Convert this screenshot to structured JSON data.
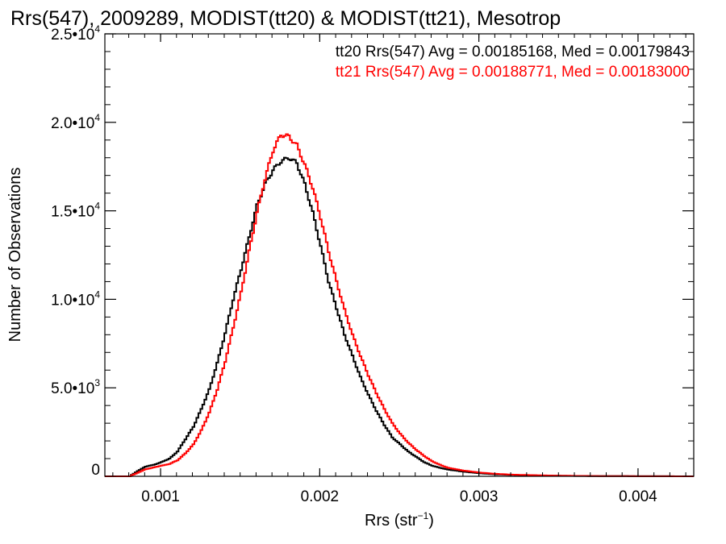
{
  "chart_data": {
    "type": "line",
    "title": "Rrs(547), 2009289, MODIST(tt20) & MODIST(tt21), Mesotrop",
    "xlabel": {
      "main": "Rrs (str",
      "sup": "−1",
      "close": ")"
    },
    "ylabel": "Number of Observations",
    "xlim": [
      0.00065,
      0.00435
    ],
    "ylim": [
      0,
      25000
    ],
    "grid": false,
    "legend_placement": "top-right",
    "x_ticks": [
      {
        "value": 0.001,
        "label": "0.001"
      },
      {
        "value": 0.002,
        "label": "0.002"
      },
      {
        "value": 0.003,
        "label": "0.003"
      },
      {
        "value": 0.004,
        "label": "0.004"
      }
    ],
    "y_ticks": [
      {
        "value": 0,
        "label": "0",
        "sup": ""
      },
      {
        "value": 5000,
        "label": "5.0•10",
        "sup": "3"
      },
      {
        "value": 10000,
        "label": "1.0•10",
        "sup": "4"
      },
      {
        "value": 15000,
        "label": "1.5•10",
        "sup": "4"
      },
      {
        "value": 20000,
        "label": "2.0•10",
        "sup": "4"
      },
      {
        "value": 25000,
        "label": "2.5•10",
        "sup": "4"
      }
    ],
    "series": [
      {
        "name": "tt20",
        "legend": "tt20 Rrs(547) Avg = 0.00185168, Med = 0.00179843",
        "color": "#000000",
        "points": [
          [
            0.00065,
            0
          ],
          [
            0.0008,
            0
          ],
          [
            0.00085,
            300
          ],
          [
            0.0009,
            550
          ],
          [
            0.00095,
            650
          ],
          [
            0.001,
            800
          ],
          [
            0.00105,
            1000
          ],
          [
            0.0011,
            1400
          ],
          [
            0.00115,
            2100
          ],
          [
            0.0012,
            2800
          ],
          [
            0.00125,
            3800
          ],
          [
            0.0013,
            4900
          ],
          [
            0.00135,
            6400
          ],
          [
            0.0014,
            8100
          ],
          [
            0.00145,
            10000
          ],
          [
            0.0015,
            11700
          ],
          [
            0.00155,
            13500
          ],
          [
            0.0016,
            15300
          ],
          [
            0.00165,
            16500
          ],
          [
            0.0017,
            17300
          ],
          [
            0.00175,
            17800
          ],
          [
            0.0018,
            18000
          ],
          [
            0.00185,
            17700
          ],
          [
            0.0019,
            16500
          ],
          [
            0.00195,
            14900
          ],
          [
            0.002,
            13000
          ],
          [
            0.00205,
            11000
          ],
          [
            0.0021,
            9500
          ],
          [
            0.00215,
            8000
          ],
          [
            0.0022,
            6800
          ],
          [
            0.00225,
            5600
          ],
          [
            0.0023,
            4600
          ],
          [
            0.00235,
            3700
          ],
          [
            0.0024,
            2900
          ],
          [
            0.00245,
            2200
          ],
          [
            0.0025,
            1800
          ],
          [
            0.00255,
            1400
          ],
          [
            0.0026,
            1100
          ],
          [
            0.00265,
            800
          ],
          [
            0.0027,
            600
          ],
          [
            0.00275,
            480
          ],
          [
            0.0028,
            380
          ],
          [
            0.0029,
            260
          ],
          [
            0.003,
            170
          ],
          [
            0.0031,
            110
          ],
          [
            0.0032,
            80
          ],
          [
            0.0034,
            40
          ],
          [
            0.0036,
            20
          ],
          [
            0.0038,
            10
          ],
          [
            0.004,
            5
          ],
          [
            0.00435,
            0
          ]
        ]
      },
      {
        "name": "tt21",
        "legend": "tt21 Rrs(547) Avg = 0.00188771, Med = 0.00183000",
        "color": "#ff0000",
        "points": [
          [
            0.00065,
            0
          ],
          [
            0.0008,
            0
          ],
          [
            0.00085,
            200
          ],
          [
            0.0009,
            400
          ],
          [
            0.00095,
            500
          ],
          [
            0.001,
            600
          ],
          [
            0.00105,
            700
          ],
          [
            0.0011,
            900
          ],
          [
            0.00115,
            1300
          ],
          [
            0.0012,
            1800
          ],
          [
            0.00125,
            2600
          ],
          [
            0.0013,
            3600
          ],
          [
            0.00135,
            4900
          ],
          [
            0.0014,
            6500
          ],
          [
            0.00145,
            8400
          ],
          [
            0.0015,
            10400
          ],
          [
            0.00155,
            12700
          ],
          [
            0.0016,
            14900
          ],
          [
            0.00165,
            16800
          ],
          [
            0.0017,
            18400
          ],
          [
            0.00175,
            19300
          ],
          [
            0.0018,
            19200
          ],
          [
            0.00185,
            18700
          ],
          [
            0.0019,
            17600
          ],
          [
            0.00195,
            16300
          ],
          [
            0.002,
            14600
          ],
          [
            0.00205,
            12700
          ],
          [
            0.0021,
            11000
          ],
          [
            0.00215,
            9400
          ],
          [
            0.0022,
            8000
          ],
          [
            0.00225,
            6800
          ],
          [
            0.0023,
            5700
          ],
          [
            0.00235,
            4700
          ],
          [
            0.0024,
            3800
          ],
          [
            0.00245,
            3000
          ],
          [
            0.0025,
            2400
          ],
          [
            0.00255,
            1900
          ],
          [
            0.0026,
            1500
          ],
          [
            0.00265,
            1150
          ],
          [
            0.0027,
            850
          ],
          [
            0.00275,
            650
          ],
          [
            0.0028,
            480
          ],
          [
            0.0029,
            320
          ],
          [
            0.003,
            210
          ],
          [
            0.0031,
            140
          ],
          [
            0.0032,
            95
          ],
          [
            0.0034,
            50
          ],
          [
            0.0036,
            25
          ],
          [
            0.0038,
            12
          ],
          [
            0.004,
            6
          ],
          [
            0.00435,
            0
          ]
        ]
      }
    ]
  }
}
